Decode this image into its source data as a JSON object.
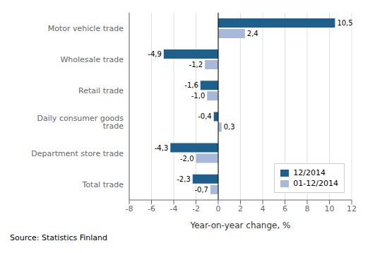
{
  "chart_data": {
    "type": "bar",
    "orientation": "horizontal",
    "categories": [
      "Motor vehicle trade",
      "Wholesale trade",
      "Retail trade",
      "Daily consumer goods trade",
      "Department store trade",
      "Total trade"
    ],
    "series": [
      {
        "name": "12/2014",
        "color": "#1f5f8b",
        "values": [
          10.5,
          -4.9,
          -1.6,
          -0.4,
          -4.3,
          -2.3
        ],
        "value_labels": [
          "10,5",
          "-4,9",
          "-1,6",
          "-0,4",
          "-4,3",
          "-2,3"
        ]
      },
      {
        "name": "01-12/2014",
        "color": "#a8b8d8",
        "values": [
          2.4,
          -1.2,
          -1.0,
          0.3,
          -2.0,
          -0.7
        ],
        "value_labels": [
          "2,4",
          "-1,2",
          "-1,0",
          "0,3",
          "-2,0",
          "-0,7"
        ]
      }
    ],
    "xlabel": "Year-on-year change, %",
    "xlim": [
      -8,
      12
    ],
    "xticks": [
      -8,
      -6,
      -4,
      -2,
      0,
      2,
      4,
      6,
      8,
      10,
      12
    ],
    "grid": true,
    "legend": "lower right",
    "data_labels": true,
    "annotations": [
      "Source: Statistics Finland"
    ]
  }
}
